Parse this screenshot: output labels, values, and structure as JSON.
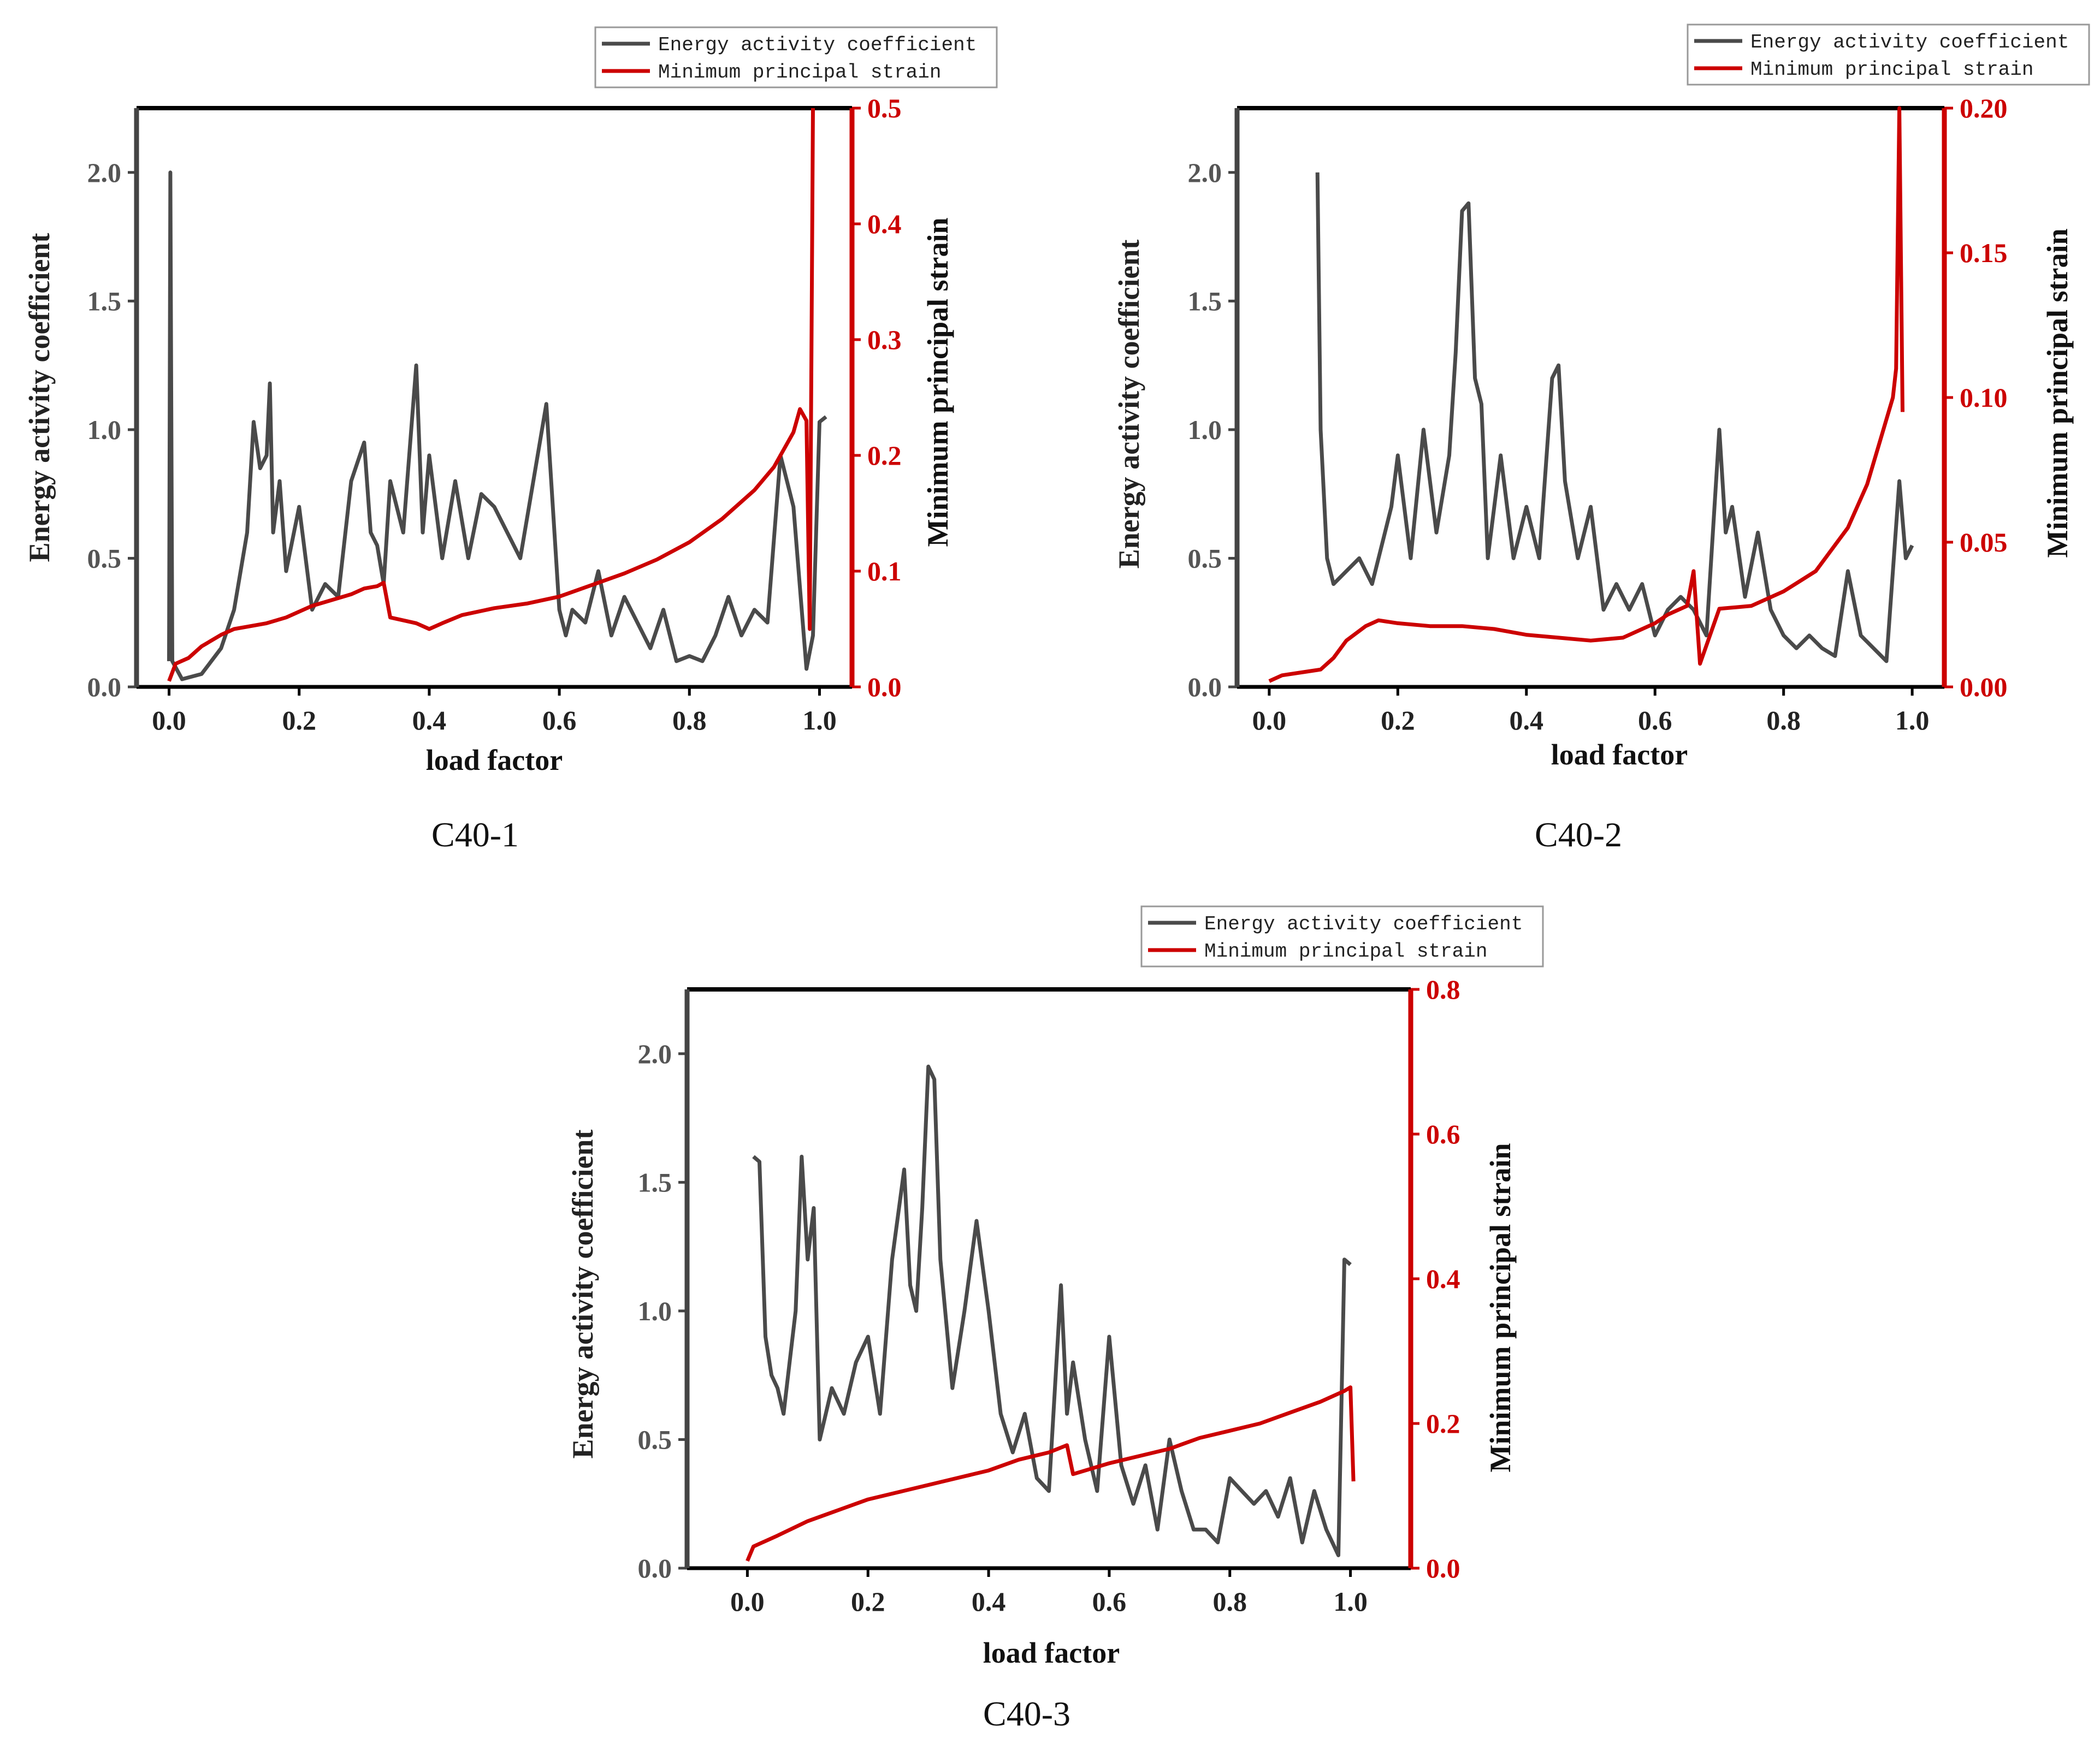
{
  "chart_data": [
    {
      "id": "c40-1",
      "type": "line",
      "caption": "C40-1",
      "xlabel": "load factor",
      "ylabel_left": "Energy activity coefficient",
      "ylabel_right": "Minimum principal strain",
      "xlim": [
        -0.05,
        1.05
      ],
      "ylim_left": [
        0,
        2.25
      ],
      "ylim_right": [
        0,
        0.5
      ],
      "xticks": [
        "0.0",
        "0.2",
        "0.4",
        "0.6",
        "0.8",
        "1.0"
      ],
      "yticks_left": [
        "0.0",
        "0.5",
        "1.0",
        "1.5",
        "2.0"
      ],
      "yticks_right": [
        "0.0",
        "0.1",
        "0.2",
        "0.3",
        "0.4",
        "0.5"
      ],
      "legend": [
        "Energy activity coefficient",
        "Minimum principal strain"
      ],
      "colors": {
        "energy": "#4a4a4a",
        "strain": "#cc0000"
      },
      "series": [
        {
          "name": "Energy activity coefficient",
          "axis": "left",
          "x": [
            0.0,
            0.002,
            0.005,
            0.02,
            0.05,
            0.08,
            0.1,
            0.12,
            0.13,
            0.14,
            0.15,
            0.155,
            0.16,
            0.17,
            0.18,
            0.2,
            0.22,
            0.24,
            0.26,
            0.28,
            0.3,
            0.31,
            0.32,
            0.33,
            0.34,
            0.36,
            0.38,
            0.39,
            0.4,
            0.42,
            0.44,
            0.46,
            0.48,
            0.5,
            0.52,
            0.54,
            0.56,
            0.58,
            0.59,
            0.6,
            0.61,
            0.62,
            0.64,
            0.66,
            0.68,
            0.7,
            0.72,
            0.74,
            0.76,
            0.78,
            0.8,
            0.82,
            0.84,
            0.86,
            0.88,
            0.9,
            0.92,
            0.94,
            0.96,
            0.98,
            0.99,
            1.0,
            1.01
          ],
          "y": [
            0.1,
            2.0,
            0.1,
            0.03,
            0.05,
            0.15,
            0.3,
            0.6,
            1.03,
            0.85,
            0.9,
            1.18,
            0.6,
            0.8,
            0.45,
            0.7,
            0.3,
            0.4,
            0.35,
            0.8,
            0.95,
            0.6,
            0.55,
            0.4,
            0.8,
            0.6,
            1.25,
            0.6,
            0.9,
            0.5,
            0.8,
            0.5,
            0.75,
            0.7,
            0.6,
            0.5,
            0.8,
            1.1,
            0.7,
            0.3,
            0.2,
            0.3,
            0.25,
            0.45,
            0.2,
            0.35,
            0.25,
            0.15,
            0.3,
            0.1,
            0.12,
            0.1,
            0.2,
            0.35,
            0.2,
            0.3,
            0.25,
            0.9,
            0.7,
            0.07,
            0.2,
            1.03,
            1.05
          ]
        },
        {
          "name": "Minimum principal strain",
          "axis": "right",
          "x": [
            0.0,
            0.01,
            0.03,
            0.05,
            0.08,
            0.1,
            0.12,
            0.15,
            0.18,
            0.2,
            0.22,
            0.25,
            0.28,
            0.3,
            0.32,
            0.33,
            0.34,
            0.38,
            0.4,
            0.42,
            0.45,
            0.5,
            0.55,
            0.6,
            0.65,
            0.7,
            0.75,
            0.8,
            0.85,
            0.9,
            0.93,
            0.95,
            0.96,
            0.97,
            0.98,
            0.985,
            0.99
          ],
          "y": [
            0.005,
            0.02,
            0.025,
            0.035,
            0.045,
            0.05,
            0.052,
            0.055,
            0.06,
            0.065,
            0.07,
            0.075,
            0.08,
            0.085,
            0.087,
            0.09,
            0.06,
            0.055,
            0.05,
            0.055,
            0.062,
            0.068,
            0.072,
            0.078,
            0.088,
            0.098,
            0.11,
            0.125,
            0.145,
            0.17,
            0.19,
            0.21,
            0.22,
            0.24,
            0.23,
            0.05,
            0.5
          ]
        }
      ]
    },
    {
      "id": "c40-2",
      "type": "line",
      "caption": "C40-2",
      "xlabel": "load factor",
      "ylabel_left": "Energy activity coefficient",
      "ylabel_right": "Minimum principal strain",
      "xlim": [
        -0.05,
        1.05
      ],
      "ylim_left": [
        0,
        2.25
      ],
      "ylim_right": [
        0,
        0.2
      ],
      "xticks": [
        "0.0",
        "0.2",
        "0.4",
        "0.6",
        "0.8",
        "1.0"
      ],
      "yticks_left": [
        "0.0",
        "0.5",
        "1.0",
        "1.5",
        "2.0"
      ],
      "yticks_right": [
        "0.00",
        "0.05",
        "0.10",
        "0.15",
        "0.20"
      ],
      "legend": [
        "Energy activity coefficient",
        "Minimum principal strain"
      ],
      "colors": {
        "energy": "#4a4a4a",
        "strain": "#cc0000"
      },
      "series": [
        {
          "name": "Energy activity coefficient",
          "axis": "left",
          "x": [
            0.075,
            0.08,
            0.09,
            0.1,
            0.12,
            0.14,
            0.16,
            0.18,
            0.19,
            0.2,
            0.22,
            0.24,
            0.26,
            0.28,
            0.29,
            0.3,
            0.31,
            0.32,
            0.33,
            0.34,
            0.36,
            0.38,
            0.4,
            0.42,
            0.44,
            0.45,
            0.46,
            0.48,
            0.5,
            0.52,
            0.54,
            0.56,
            0.58,
            0.6,
            0.62,
            0.64,
            0.66,
            0.68,
            0.7,
            0.71,
            0.72,
            0.74,
            0.76,
            0.78,
            0.8,
            0.82,
            0.84,
            0.86,
            0.88,
            0.9,
            0.92,
            0.94,
            0.96,
            0.98,
            0.99,
            1.0
          ],
          "y": [
            2.0,
            1.0,
            0.5,
            0.4,
            0.45,
            0.5,
            0.4,
            0.6,
            0.7,
            0.9,
            0.5,
            1.0,
            0.6,
            0.9,
            1.3,
            1.85,
            1.88,
            1.2,
            1.1,
            0.5,
            0.9,
            0.5,
            0.7,
            0.5,
            1.2,
            1.25,
            0.8,
            0.5,
            0.7,
            0.3,
            0.4,
            0.3,
            0.4,
            0.2,
            0.3,
            0.35,
            0.3,
            0.2,
            1.0,
            0.6,
            0.7,
            0.35,
            0.6,
            0.3,
            0.2,
            0.15,
            0.2,
            0.15,
            0.12,
            0.45,
            0.2,
            0.15,
            0.1,
            0.8,
            0.5,
            0.55
          ]
        },
        {
          "name": "Minimum principal strain",
          "axis": "right",
          "x": [
            0.0,
            0.02,
            0.05,
            0.08,
            0.1,
            0.12,
            0.15,
            0.17,
            0.2,
            0.25,
            0.3,
            0.35,
            0.4,
            0.45,
            0.5,
            0.55,
            0.6,
            0.62,
            0.65,
            0.66,
            0.67,
            0.7,
            0.75,
            0.78,
            0.8,
            0.85,
            0.9,
            0.93,
            0.95,
            0.97,
            0.975,
            0.98,
            0.985
          ],
          "y": [
            0.002,
            0.004,
            0.005,
            0.006,
            0.01,
            0.016,
            0.021,
            0.023,
            0.022,
            0.021,
            0.021,
            0.02,
            0.018,
            0.017,
            0.016,
            0.017,
            0.022,
            0.025,
            0.028,
            0.04,
            0.008,
            0.027,
            0.028,
            0.031,
            0.033,
            0.04,
            0.055,
            0.07,
            0.085,
            0.1,
            0.11,
            0.2,
            0.095
          ]
        }
      ]
    },
    {
      "id": "c40-3",
      "type": "line",
      "caption": "C40-3",
      "xlabel": "load factor",
      "ylabel_left": "Energy activity coefficient",
      "ylabel_right": "Minimum principal strain",
      "xlim": [
        -0.1,
        1.1
      ],
      "ylim_left": [
        0,
        2.25
      ],
      "ylim_right": [
        0,
        0.8
      ],
      "xticks": [
        "0.0",
        "0.2",
        "0.4",
        "0.6",
        "0.8",
        "1.0"
      ],
      "yticks_left": [
        "0.0",
        "0.5",
        "1.0",
        "1.5",
        "2.0"
      ],
      "yticks_right": [
        "0.0",
        "0.2",
        "0.4",
        "0.6",
        "0.8"
      ],
      "legend": [
        "Energy activity coefficient",
        "Minimum principal strain"
      ],
      "colors": {
        "energy": "#4a4a4a",
        "strain": "#cc0000"
      },
      "series": [
        {
          "name": "Energy activity coefficient",
          "axis": "left",
          "x": [
            0.01,
            0.02,
            0.03,
            0.04,
            0.05,
            0.06,
            0.07,
            0.08,
            0.09,
            0.1,
            0.11,
            0.12,
            0.13,
            0.14,
            0.16,
            0.18,
            0.2,
            0.22,
            0.24,
            0.26,
            0.27,
            0.28,
            0.29,
            0.3,
            0.31,
            0.32,
            0.34,
            0.36,
            0.38,
            0.4,
            0.42,
            0.44,
            0.46,
            0.48,
            0.5,
            0.52,
            0.53,
            0.54,
            0.56,
            0.58,
            0.6,
            0.62,
            0.64,
            0.66,
            0.68,
            0.7,
            0.72,
            0.74,
            0.76,
            0.78,
            0.8,
            0.82,
            0.84,
            0.86,
            0.88,
            0.9,
            0.92,
            0.94,
            0.96,
            0.98,
            0.99,
            1.0
          ],
          "y": [
            1.6,
            1.58,
            0.9,
            0.75,
            0.7,
            0.6,
            0.8,
            1.0,
            1.6,
            1.2,
            1.4,
            0.5,
            0.6,
            0.7,
            0.6,
            0.8,
            0.9,
            0.6,
            1.2,
            1.55,
            1.1,
            1.0,
            1.4,
            1.95,
            1.9,
            1.2,
            0.7,
            1.0,
            1.35,
            1.0,
            0.6,
            0.45,
            0.6,
            0.35,
            0.3,
            1.1,
            0.6,
            0.8,
            0.5,
            0.3,
            0.9,
            0.4,
            0.25,
            0.4,
            0.15,
            0.5,
            0.3,
            0.15,
            0.15,
            0.1,
            0.35,
            0.3,
            0.25,
            0.3,
            0.2,
            0.35,
            0.1,
            0.3,
            0.15,
            0.05,
            1.2,
            1.18
          ]
        },
        {
          "name": "Minimum principal strain",
          "axis": "right",
          "x": [
            0.0,
            0.01,
            0.05,
            0.1,
            0.15,
            0.2,
            0.25,
            0.3,
            0.35,
            0.4,
            0.45,
            0.5,
            0.53,
            0.54,
            0.6,
            0.65,
            0.7,
            0.75,
            0.8,
            0.85,
            0.9,
            0.95,
            0.99,
            1.0,
            1.005
          ],
          "y": [
            0.01,
            0.03,
            0.045,
            0.065,
            0.08,
            0.095,
            0.105,
            0.115,
            0.125,
            0.135,
            0.15,
            0.16,
            0.17,
            0.13,
            0.145,
            0.155,
            0.165,
            0.18,
            0.19,
            0.2,
            0.215,
            0.23,
            0.245,
            0.25,
            0.12
          ]
        }
      ]
    }
  ]
}
